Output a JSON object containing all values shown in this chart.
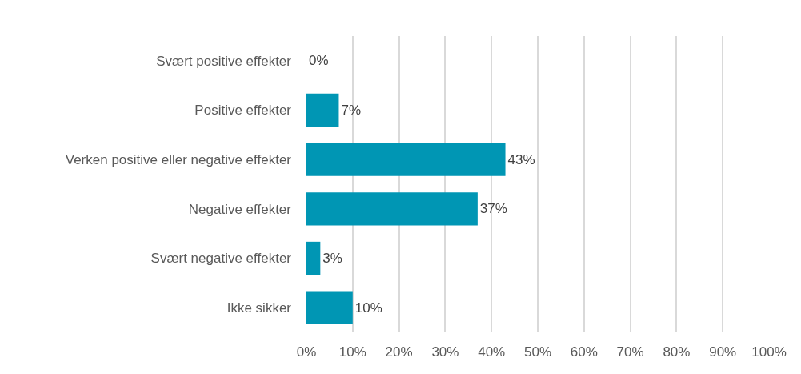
{
  "chart_data": {
    "type": "bar",
    "orientation": "horizontal",
    "categories": [
      "Svært positive effekter",
      "Positive effekter",
      "Verken positive eller negative effekter",
      "Negative effekter",
      "Svært negative effekter",
      "Ikke sikker"
    ],
    "values": [
      0,
      7,
      43,
      37,
      3,
      10
    ],
    "value_labels": [
      "0%",
      "7%",
      "43%",
      "37%",
      "3%",
      "10%"
    ],
    "color": "#0096b4",
    "xlim": [
      0,
      100
    ],
    "xticks": [
      {
        "value": 0,
        "label": "0%"
      },
      {
        "value": 10,
        "label": "10%"
      },
      {
        "value": 20,
        "label": "20%"
      },
      {
        "value": 30,
        "label": "30%"
      },
      {
        "value": 40,
        "label": "40%"
      },
      {
        "value": 50,
        "label": "50%"
      },
      {
        "value": 60,
        "label": "60%"
      },
      {
        "value": 70,
        "label": "70%"
      },
      {
        "value": 80,
        "label": "80%"
      },
      {
        "value": 90,
        "label": "90%"
      },
      {
        "value": 100,
        "label": "100%"
      }
    ],
    "grid": "x"
  }
}
